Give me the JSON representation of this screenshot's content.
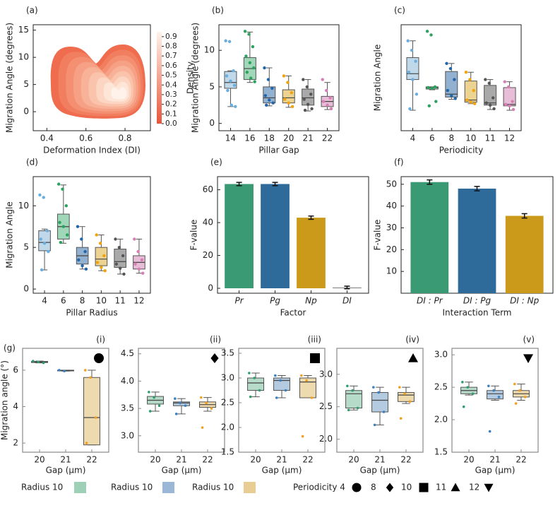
{
  "chart_data": [
    {
      "type": "density",
      "panel": "(a)",
      "xlabel": "Deformation Index (DI)",
      "ylabel": "Migration Angle (degrees)",
      "xlim": [
        0.33,
        0.93
      ],
      "ylim": [
        -3.5,
        16
      ],
      "xticks": [
        0.4,
        0.6,
        0.8
      ],
      "yticks": [
        0,
        5,
        10,
        15
      ],
      "colorbar_label": "Density",
      "colorbar_lim": [
        0,
        0.95
      ],
      "colorbar_ticks": [
        {
          "value": 0,
          "label": "0.0"
        },
        0.1,
        0.2,
        0.3,
        0.4,
        0.5,
        0.6,
        0.7,
        0.8,
        0.9
      ]
    },
    {
      "type": "box",
      "panel": "(b)",
      "xlabel": "Pillar Gap",
      "ylabel": "Migration Angle (degrees)",
      "categories": [
        "14",
        "16",
        "18",
        "20",
        "21",
        "22"
      ],
      "ylim": [
        -1,
        13.5
      ],
      "yticks": [
        0,
        5,
        10
      ],
      "colors": [
        "#a9cce3",
        "#7fc9a0",
        "#6d95c0",
        "#e6c46e",
        "#8c8c8c",
        "#e0a7c9"
      ],
      "point_colors": [
        "#6aaee0",
        "#2ca25f",
        "#2166ac",
        "#f0a30a",
        "#555555",
        "#d77fb5"
      ],
      "boxes": [
        {
          "min": 2.3,
          "q1": 4.8,
          "median": 5.6,
          "q3": 7.1,
          "max": 7.2,
          "points": [
            11.3,
            11.2,
            7.2,
            6.5,
            5.8,
            5.2,
            4.5,
            2.5,
            2.3
          ]
        },
        {
          "min": 5.6,
          "q1": 6.0,
          "median": 7.5,
          "q3": 9.0,
          "max": 12.5,
          "points": [
            12.6,
            12.2,
            10.5,
            9.2,
            8.3,
            7.6,
            7.0,
            6.2,
            5.7
          ]
        },
        {
          "min": 2.4,
          "q1": 2.8,
          "median": 3.5,
          "q3": 5.0,
          "max": 7.6,
          "points": [
            7.6,
            6.0,
            4.8,
            3.8,
            3.2,
            2.8,
            2.5
          ]
        },
        {
          "min": 2.2,
          "q1": 2.8,
          "median": 3.5,
          "q3": 4.6,
          "max": 6.5,
          "points": [
            6.5,
            5.6,
            4.2,
            3.3,
            2.8,
            2.3
          ]
        },
        {
          "min": 1.7,
          "q1": 2.5,
          "median": 3.5,
          "q3": 4.7,
          "max": 6.0,
          "points": [
            6.0,
            5.0,
            4.0,
            3.3,
            2.6,
            2.0,
            1.8
          ]
        },
        {
          "min": 1.9,
          "q1": 2.3,
          "median": 3.0,
          "q3": 3.7,
          "max": 5.6,
          "points": [
            6.0,
            4.5,
            3.5,
            3.0,
            2.5,
            2.0
          ]
        }
      ]
    },
    {
      "type": "box",
      "panel": "(c)",
      "xlabel": "Periodicity",
      "ylabel": "Migration Angle",
      "categories": [
        "4",
        "6",
        "8",
        "10",
        "11",
        "12"
      ],
      "ylim": [
        -1,
        13.5
      ],
      "colors": [
        "#a9cce3",
        "#7fc9a0",
        "#6d95c0",
        "#e6c46e",
        "#8c8c8c",
        "#e0a7c9"
      ],
      "point_colors": [
        "#6aaee0",
        "#2ca25f",
        "#2166ac",
        "#f0a30a",
        "#555555",
        "#d77fb5"
      ],
      "boxes": [
        {
          "min": 1.8,
          "q1": 6.0,
          "median": 6.8,
          "q3": 9.0,
          "max": 11.3,
          "points": [
            11.3,
            10.0,
            8.5,
            7.0,
            6.0,
            4.0,
            2.0
          ]
        },
        {
          "min": 4.6,
          "q1": 4.7,
          "median": 4.9,
          "q3": 5.0,
          "max": 5.0,
          "points": [
            12.6,
            12.1,
            5.0,
            4.9,
            4.8,
            3.0,
            2.4
          ]
        },
        {
          "min": 3.3,
          "q1": 3.6,
          "median": 4.0,
          "q3": 7.1,
          "max": 8.2,
          "points": [
            8.2,
            7.5,
            6.0,
            4.5,
            3.8,
            3.4
          ]
        },
        {
          "min": 2.7,
          "q1": 2.9,
          "median": 3.2,
          "q3": 5.8,
          "max": 7.0,
          "points": [
            7.0,
            6.0,
            4.5,
            3.2,
            2.9,
            2.7
          ]
        },
        {
          "min": 1.9,
          "q1": 2.5,
          "median": 2.8,
          "q3": 5.2,
          "max": 6.0,
          "points": [
            6.0,
            5.5,
            3.5,
            2.8,
            2.5,
            2.0
          ]
        },
        {
          "min": 1.8,
          "q1": 2.4,
          "median": 2.6,
          "q3": 4.9,
          "max": 5.7,
          "points": [
            5.7,
            5.0,
            3.0,
            2.6,
            2.4,
            1.9
          ]
        }
      ]
    },
    {
      "type": "box",
      "panel": "(d)",
      "xlabel": "Pillar Radius",
      "ylabel": "Migration Angle",
      "categories": [
        "4",
        "6",
        "8",
        "10",
        "11",
        "12"
      ],
      "ylim": [
        -0.5,
        13.5
      ],
      "yticks": [
        0,
        5,
        10
      ],
      "colors": [
        "#a9cce3",
        "#7fc9a0",
        "#6d95c0",
        "#e6c46e",
        "#8c8c8c",
        "#e0a7c9"
      ],
      "point_colors": [
        "#6aaee0",
        "#2ca25f",
        "#2166ac",
        "#f0a30a",
        "#555555",
        "#d77fb5"
      ],
      "boxes": [
        {
          "min": 2.3,
          "q1": 4.6,
          "median": 5.6,
          "q3": 7.0,
          "max": 7.2,
          "points": [
            11.3,
            11.0,
            7.0,
            6.0,
            5.5,
            4.5,
            2.3
          ]
        },
        {
          "min": 5.5,
          "q1": 6.0,
          "median": 7.5,
          "q3": 9.0,
          "max": 12.5,
          "points": [
            12.6,
            12.0,
            10.0,
            8.0,
            7.5,
            6.5,
            5.6
          ]
        },
        {
          "min": 2.4,
          "q1": 3.0,
          "median": 4.0,
          "q3": 5.0,
          "max": 7.5,
          "points": [
            7.5,
            6.0,
            4.5,
            3.5,
            2.8,
            2.4
          ]
        },
        {
          "min": 2.2,
          "q1": 2.8,
          "median": 3.6,
          "q3": 5.0,
          "max": 6.5,
          "points": [
            6.5,
            5.5,
            4.0,
            3.2,
            2.6,
            2.2
          ]
        },
        {
          "min": 1.8,
          "q1": 2.6,
          "median": 3.3,
          "q3": 4.8,
          "max": 6.0,
          "points": [
            6.0,
            5.0,
            4.0,
            3.0,
            2.5,
            1.8
          ]
        },
        {
          "min": 1.9,
          "q1": 2.4,
          "median": 3.2,
          "q3": 4.0,
          "max": 6.0,
          "points": [
            6.0,
            4.5,
            3.5,
            3.0,
            2.4,
            1.9
          ]
        }
      ]
    },
    {
      "type": "bar",
      "panel": "(e)",
      "xlabel": "Factor",
      "ylabel": "F-value",
      "categories": [
        "Pr",
        "Pg",
        "Np",
        "DI"
      ],
      "values": [
        63.5,
        63.5,
        43,
        0.5
      ],
      "errors": [
        1,
        1,
        1,
        0.8
      ],
      "colors": [
        "#3a9a74",
        "#2e6b9a",
        "#cc9a1a",
        "#888888"
      ],
      "ylim": [
        -3,
        68
      ],
      "yticks": [
        0,
        20,
        40,
        60
      ]
    },
    {
      "type": "bar",
      "panel": "(f)",
      "xlabel": "Interaction Term",
      "ylabel": "F-value",
      "categories": [
        "DI : Pr",
        "DI : Pg",
        "DI : Np"
      ],
      "values": [
        51,
        48,
        35.5
      ],
      "errors": [
        1,
        1,
        1
      ],
      "colors": [
        "#3a9a74",
        "#2e6b9a",
        "#cc9a1a"
      ],
      "ylim": [
        0,
        53.5
      ],
      "yticks": [
        10,
        20,
        30,
        40,
        50
      ]
    },
    {
      "type": "box",
      "panel": "(g)",
      "title": "(i)",
      "marker": "circle",
      "xlabel": "Gap (μm)",
      "ylabel": "Migration angle (°)",
      "categories": [
        "20",
        "21",
        "22"
      ],
      "ylim": [
        1.5,
        7.2
      ],
      "yticks": [
        2,
        4,
        6
      ],
      "colors": [
        "#9ecfb7",
        "#9ab8d6",
        "#e8cd94"
      ],
      "point_colors": [
        "#2f9e6e",
        "#3d80c0",
        "#f0a020"
      ],
      "boxes": [
        {
          "min": 6.4,
          "q1": 6.42,
          "median": 6.45,
          "q3": 6.48,
          "max": 6.5,
          "points": [
            6.5,
            6.45,
            6.4
          ]
        },
        {
          "min": 5.95,
          "q1": 5.96,
          "median": 5.98,
          "q3": 6.0,
          "max": 6.0,
          "points": [
            6.0,
            5.95
          ]
        },
        {
          "min": 1.9,
          "q1": 1.9,
          "median": 3.4,
          "q3": 5.6,
          "max": 6.0,
          "points": [
            6.0,
            5.6,
            3.4,
            2.0
          ]
        }
      ]
    },
    {
      "type": "box",
      "title": "(ii)",
      "marker": "diamond",
      "xlabel": "Gap (μm)",
      "categories": [
        "20",
        "21",
        "22"
      ],
      "ylim": [
        2.7,
        4.6
      ],
      "yticks": [
        {
          "value": 3,
          "label": "3.0"
        },
        3.5,
        {
          "value": 4,
          "label": "4.0"
        },
        4.5
      ],
      "colors": [
        "#9ecfb7",
        "#9ab8d6",
        "#e8cd94"
      ],
      "point_colors": [
        "#2f9e6e",
        "#3d80c0",
        "#f0a020"
      ],
      "boxes": [
        {
          "min": 3.45,
          "q1": 3.58,
          "median": 3.65,
          "q3": 3.72,
          "max": 3.8,
          "points": [
            3.8,
            3.7,
            3.55,
            3.45
          ]
        },
        {
          "min": 3.4,
          "q1": 3.55,
          "median": 3.6,
          "q3": 3.62,
          "max": 3.68,
          "points": [
            3.68,
            3.6,
            3.55,
            3.4
          ]
        },
        {
          "min": 3.45,
          "q1": 3.52,
          "median": 3.57,
          "q3": 3.62,
          "max": 3.7,
          "points": [
            3.7,
            3.6,
            3.5,
            3.15
          ]
        }
      ]
    },
    {
      "type": "box",
      "title": "(iii)",
      "marker": "square",
      "xlabel": "Gap (μm)",
      "categories": [
        "20",
        "21",
        "22"
      ],
      "ylim": [
        1.5,
        3.6
      ],
      "yticks": [
        1.5,
        {
          "value": 2,
          "label": "2.0"
        },
        2.5,
        {
          "value": 3,
          "label": "3.0"
        },
        3.5
      ],
      "colors": [
        "#9ecfb7",
        "#9ab8d6",
        "#e8cd94"
      ],
      "point_colors": [
        "#2f9e6e",
        "#3d80c0",
        "#f0a020"
      ],
      "boxes": [
        {
          "min": 2.62,
          "q1": 2.75,
          "median": 2.9,
          "q3": 3.0,
          "max": 3.1,
          "points": [
            3.1,
            3.0,
            2.75,
            2.62
          ]
        },
        {
          "min": 2.6,
          "q1": 2.75,
          "median": 2.95,
          "q3": 3.0,
          "max": 3.05,
          "points": [
            3.05,
            2.95,
            2.75,
            2.6
          ]
        },
        {
          "min": 2.6,
          "q1": 2.6,
          "median": 2.92,
          "q3": 3.0,
          "max": 3.05,
          "points": [
            3.05,
            2.95,
            2.6,
            1.82
          ]
        }
      ]
    },
    {
      "type": "box",
      "title": "(iv)",
      "marker": "triangle-up",
      "xlabel": "Gap (μm)",
      "categories": [
        "20",
        "21",
        "22"
      ],
      "ylim": [
        1.8,
        3.4
      ],
      "yticks": [
        {
          "value": 2,
          "label": "2.0"
        },
        2.5,
        {
          "value": 3,
          "label": "3.0"
        }
      ],
      "colors": [
        "#9ecfb7",
        "#9ab8d6",
        "#e8cd94"
      ],
      "point_colors": [
        "#2f9e6e",
        "#3d80c0",
        "#f0a020"
      ],
      "boxes": [
        {
          "min": 2.45,
          "q1": 2.48,
          "median": 2.7,
          "q3": 2.75,
          "max": 2.82,
          "points": [
            2.82,
            2.75,
            2.48,
            2.45
          ]
        },
        {
          "min": 2.22,
          "q1": 2.42,
          "median": 2.6,
          "q3": 2.72,
          "max": 2.8,
          "points": [
            2.8,
            2.72,
            2.42,
            2.22
          ]
        },
        {
          "min": 2.55,
          "q1": 2.58,
          "median": 2.68,
          "q3": 2.72,
          "max": 2.8,
          "points": [
            2.8,
            2.7,
            2.58,
            2.32
          ]
        }
      ]
    },
    {
      "type": "box",
      "title": "(v)",
      "marker": "triangle-down",
      "xlabel": "Gap (μm)",
      "categories": [
        "20",
        "21",
        "22"
      ],
      "ylim": [
        1.5,
        3.1
      ],
      "yticks": [
        1.5,
        {
          "value": 2,
          "label": "2.0"
        },
        2.5,
        {
          "value": 3,
          "label": "3.0"
        }
      ],
      "colors": [
        "#9ecfb7",
        "#9ab8d6",
        "#e8cd94"
      ],
      "point_colors": [
        "#2f9e6e",
        "#3d80c0",
        "#f0a020"
      ],
      "boxes": [
        {
          "min": 2.38,
          "q1": 2.4,
          "median": 2.45,
          "q3": 2.5,
          "max": 2.58,
          "points": [
            2.58,
            2.5,
            2.4,
            2.2
          ]
        },
        {
          "min": 2.3,
          "q1": 2.32,
          "median": 2.4,
          "q3": 2.45,
          "max": 2.52,
          "points": [
            2.52,
            2.45,
            2.35,
            1.82
          ]
        },
        {
          "min": 2.3,
          "q1": 2.35,
          "median": 2.4,
          "q3": 2.45,
          "max": 2.55,
          "points": [
            2.55,
            2.45,
            2.35,
            2.25
          ]
        }
      ]
    }
  ],
  "legend": {
    "swatches": [
      {
        "label": "Radius 10",
        "color": "#9ecfb7"
      },
      {
        "label": "Radius 10",
        "color": "#9ab8d6"
      },
      {
        "label": "Radius 10",
        "color": "#e8cd94"
      }
    ],
    "markers": [
      {
        "label": "Periodicity 4",
        "marker": "circle"
      },
      {
        "label": "8",
        "marker": "diamond"
      },
      {
        "label": "10",
        "marker": "square"
      },
      {
        "label": "11",
        "marker": "triangle-up"
      },
      {
        "label": "12",
        "marker": "triangle-down"
      }
    ]
  }
}
